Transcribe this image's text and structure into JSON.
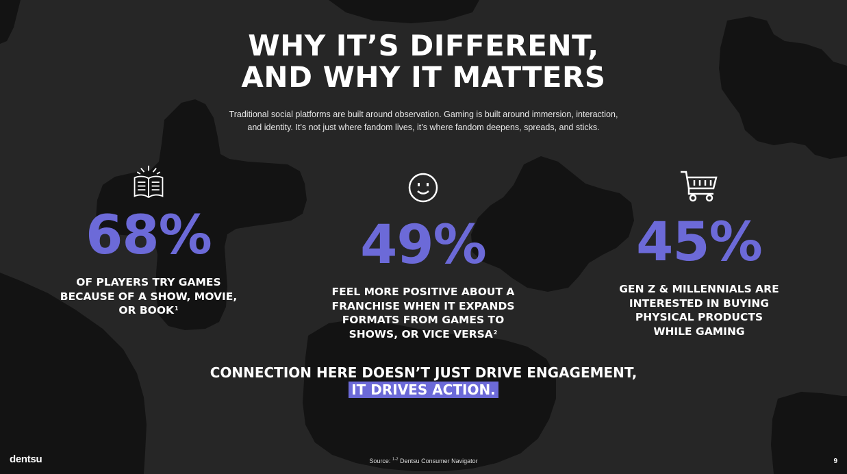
{
  "slide": {
    "title_line1": "WHY IT’S DIFFERENT,",
    "title_line2": "AND WHY IT MATTERS",
    "subtitle_line1": "Traditional social platforms are built around observation. Gaming is built around immersion, interaction,",
    "subtitle_line2": "and identity. It’s not just where fandom lives, it’s where fandom deepens, spreads, and sticks."
  },
  "stats": [
    {
      "icon": "open-book-icon",
      "value": "68%",
      "lines": [
        "OF PLAYERS TRY GAMES",
        "BECAUSE OF A SHOW, MOVIE,",
        "OR BOOK"
      ],
      "footnote": "1"
    },
    {
      "icon": "smiley-face-icon",
      "value": "49%",
      "lines": [
        "FEEL MORE POSITIVE ABOUT A",
        "FRANCHISE WHEN IT EXPANDS",
        "FORMATS FROM GAMES TO",
        "SHOWS, OR VICE VERSA"
      ],
      "footnote": "2"
    },
    {
      "icon": "shopping-cart-icon",
      "value": "45%",
      "lines": [
        "GEN Z & MILLENNIALS ARE",
        "INTERESTED IN BUYING",
        "PHYSICAL PRODUCTS",
        "WHILE GAMING"
      ],
      "footnote": ""
    }
  ],
  "cta": {
    "line1": "CONNECTION HERE DOESN’T JUST DRIVE ENGAGEMENT,",
    "highlight": "IT DRIVES ACTION."
  },
  "footer": {
    "logo": "dentsu",
    "source_label": "Source:",
    "source_refs": "1-2",
    "source_text": "Dentsu Consumer Navigator",
    "page_number": "9"
  },
  "colors": {
    "background": "#262626",
    "shapes": "#131313",
    "accent": "#6c6ad8",
    "text": "#ffffff"
  }
}
